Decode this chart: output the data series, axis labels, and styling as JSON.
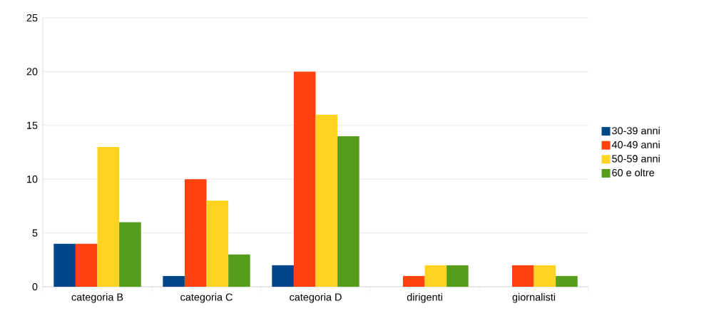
{
  "chart_data": {
    "type": "bar",
    "categories": [
      "categoria B",
      "categoria C",
      "categoria D",
      "dirigenti",
      "giornalisti"
    ],
    "series": [
      {
        "name": "30-39 anni",
        "color": "#004586",
        "values": [
          4,
          1,
          2,
          0,
          0
        ]
      },
      {
        "name": "40-49 anni",
        "color": "#ff420e",
        "values": [
          4,
          10,
          20,
          1,
          2
        ]
      },
      {
        "name": "50-59 anni",
        "color": "#ffd320",
        "values": [
          13,
          8,
          16,
          2,
          2
        ]
      },
      {
        "name": "60 e oltre",
        "color": "#579d1c",
        "values": [
          6,
          3,
          14,
          2,
          1
        ]
      }
    ],
    "ylim": [
      0,
      25
    ],
    "yticks": [
      0,
      5,
      10,
      15,
      20,
      25
    ],
    "grid": "y",
    "legend": "right"
  }
}
